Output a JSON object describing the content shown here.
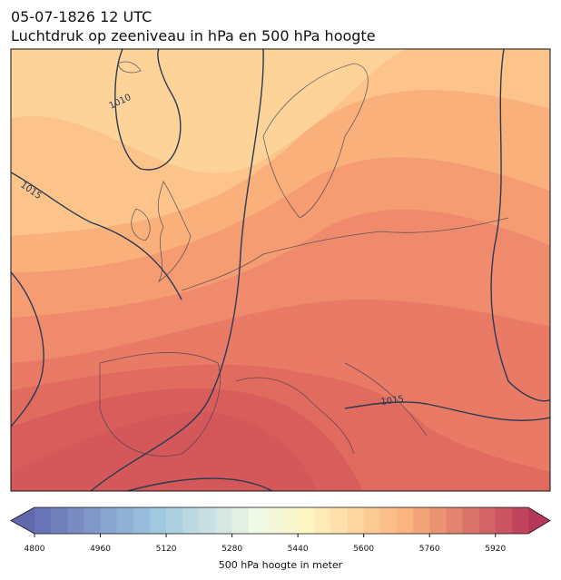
{
  "header": {
    "title": "05-07-1826 12 UTC",
    "subtitle": "Luchtdruk op zeeniveau in hPa en 500 hPa hoogte"
  },
  "map": {
    "isobar_labels": [
      "1010",
      "1015",
      "1015"
    ]
  },
  "colorbar": {
    "label": "500 hPa hoogte in meter",
    "range": [
      4800,
      6000
    ],
    "step": 40,
    "ticks": [
      4800,
      4960,
      5120,
      5280,
      5440,
      5600,
      5760,
      5920
    ]
  }
}
